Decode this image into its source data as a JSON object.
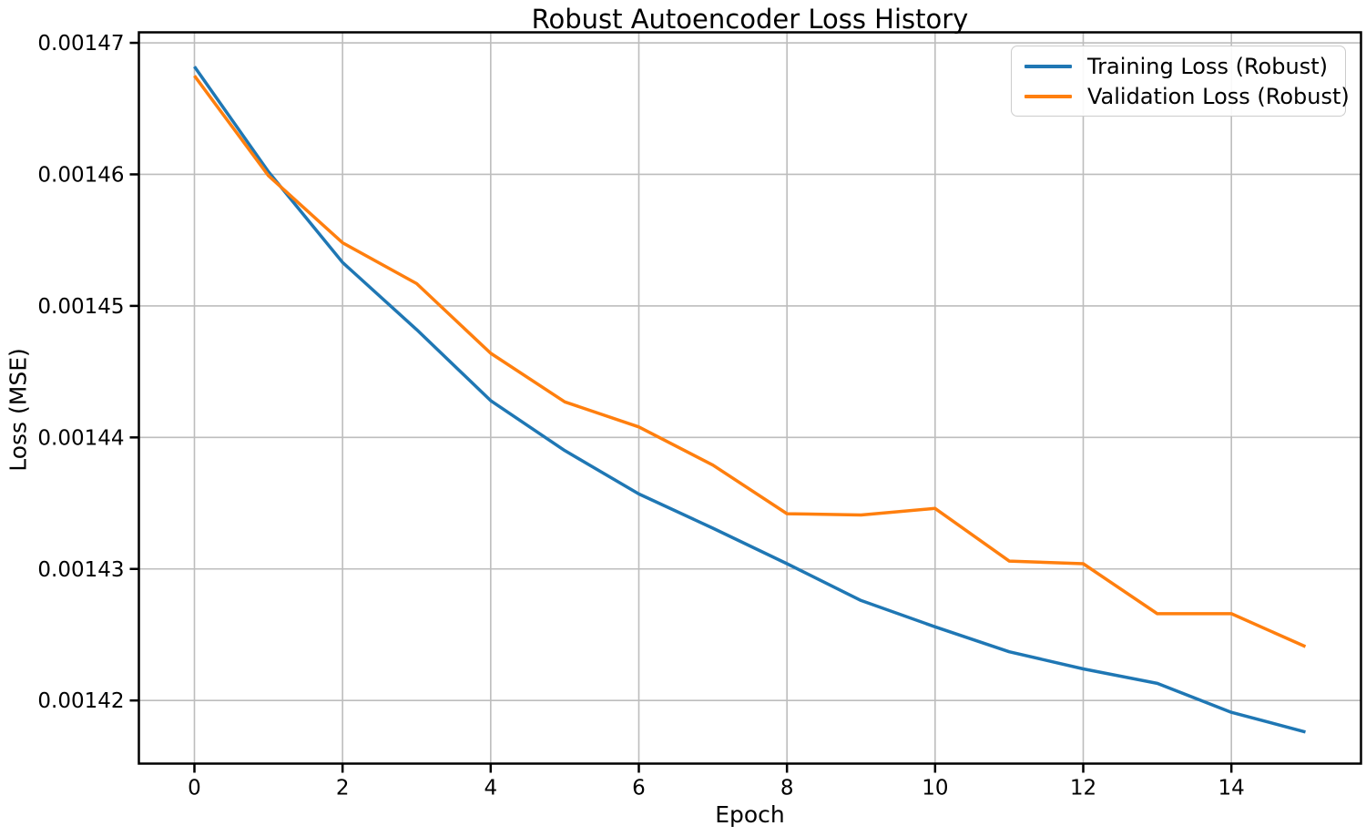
{
  "page": {
    "background": "#ffffff"
  },
  "chart_data": {
    "type": "line",
    "title": "Robust Autoencoder Loss History",
    "xlabel": "Epoch",
    "ylabel": "Loss (MSE)",
    "x": [
      0,
      1,
      2,
      3,
      4,
      5,
      6,
      7,
      8,
      9,
      10,
      11,
      12,
      13,
      14,
      15
    ],
    "series": [
      {
        "name": "Training Loss (Robust)",
        "color": "#1f77b4",
        "values": [
          0.0014682,
          0.0014602,
          0.0014533,
          0.0014482,
          0.0014428,
          0.001439,
          0.0014357,
          0.0014331,
          0.0014304,
          0.0014276,
          0.0014256,
          0.0014237,
          0.0014224,
          0.0014213,
          0.0014191,
          0.0014176
        ]
      },
      {
        "name": "Validation Loss (Robust)",
        "color": "#ff7f0e",
        "values": [
          0.0014675,
          0.0014599,
          0.0014548,
          0.0014517,
          0.0014464,
          0.0014427,
          0.0014408,
          0.0014379,
          0.0014342,
          0.0014341,
          0.0014346,
          0.0014306,
          0.0014304,
          0.0014266,
          0.0014266,
          0.0014241
        ]
      }
    ],
    "xlim": [
      -0.75,
      15.75
    ],
    "ylim": [
      0.0014152,
      0.0014708
    ],
    "xticks": {
      "values": [
        0,
        2,
        4,
        6,
        8,
        10,
        12,
        14
      ],
      "labels": [
        "0",
        "2",
        "4",
        "6",
        "8",
        "10",
        "12",
        "14"
      ]
    },
    "yticks": {
      "values": [
        0.00142,
        0.00143,
        0.00144,
        0.00145,
        0.00146,
        0.00147
      ],
      "labels": [
        "0.00142",
        "0.00143",
        "0.00144",
        "0.00145",
        "0.00146",
        "0.00147"
      ]
    },
    "grid": true,
    "legend_position": "upper right",
    "style": {
      "grid_color": "#bdbdbd",
      "spine_color": "#000000",
      "tick_color": "#000000",
      "text_color": "#000000",
      "background": "#ffffff",
      "line_width": 3.5
    }
  }
}
